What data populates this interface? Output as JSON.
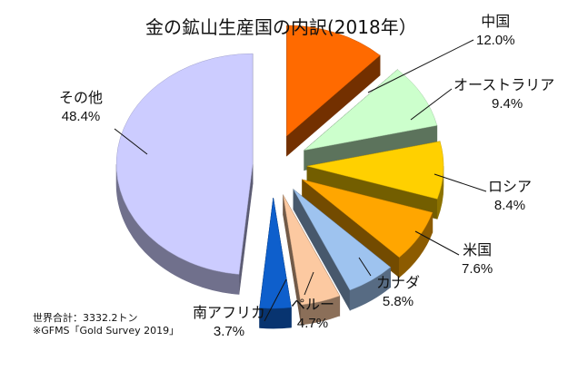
{
  "chart_data": {
    "type": "pie",
    "title": "金の鉱山生産国の内訳(2018年）",
    "slices": [
      {
        "name": "中国",
        "value": 12.0,
        "label": "12.0%",
        "color": "#ff6a00"
      },
      {
        "name": "オーストラリア",
        "value": 9.4,
        "label": "9.4%",
        "color": "#ccffcc"
      },
      {
        "name": "ロシア",
        "value": 8.4,
        "label": "8.4%",
        "color": "#ffd000"
      },
      {
        "name": "米国",
        "value": 7.6,
        "label": "7.6%",
        "color": "#ffa600"
      },
      {
        "name": "カナダ",
        "value": 5.8,
        "label": "5.8%",
        "color": "#9ec3ef"
      },
      {
        "name": "ペルー",
        "value": 4.7,
        "label": "4.7%",
        "color": "#fcc9a1"
      },
      {
        "name": "南アフリカ",
        "value": 3.7,
        "label": "3.7%",
        "color": "#0e5fcc"
      },
      {
        "name": "その他",
        "value": 48.4,
        "label": "48.4%",
        "color": "#ccccff"
      }
    ],
    "legend": "none"
  },
  "notes": {
    "total": "世界合計：3332.2トン",
    "source": "※GFMS「Gold Survey 2019」"
  }
}
